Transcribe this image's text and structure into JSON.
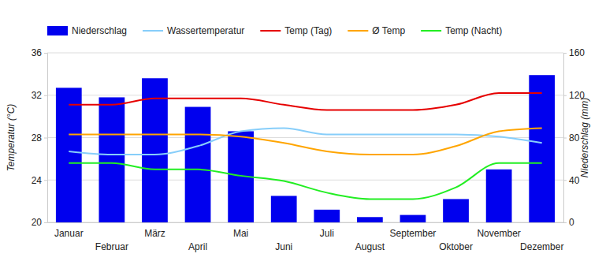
{
  "chart_data": {
    "type": "bar",
    "categories": [
      "Januar",
      "Februar",
      "März",
      "April",
      "Mai",
      "Juni",
      "Juli",
      "August",
      "September",
      "Oktober",
      "November",
      "Dezember"
    ],
    "series": [
      {
        "name": "Niederschlag",
        "type": "bar",
        "axis": "y2",
        "color": "#0000ee",
        "values": [
          127,
          118,
          136,
          109,
          86,
          25,
          12,
          5,
          7,
          22,
          50,
          139
        ]
      },
      {
        "name": "Wassertemperatur",
        "type": "line",
        "color": "#87cefa",
        "values": [
          26.7,
          26.4,
          26.4,
          27.2,
          28.6,
          28.9,
          28.3,
          28.3,
          28.3,
          28.3,
          28.1,
          27.5
        ]
      },
      {
        "name": "Temp (Tag)",
        "type": "line",
        "color": "#e60000",
        "values": [
          31.1,
          31.1,
          31.7,
          31.7,
          31.7,
          31.1,
          30.6,
          30.6,
          30.6,
          31.1,
          32.2,
          32.2
        ]
      },
      {
        "name": "Ø Temp",
        "type": "line",
        "color": "#ffa500",
        "values": [
          28.3,
          28.3,
          28.3,
          28.3,
          28.1,
          27.5,
          26.7,
          26.4,
          26.4,
          27.2,
          28.6,
          28.9
        ]
      },
      {
        "name": "Temp (Nacht)",
        "type": "line",
        "color": "#22ee22",
        "values": [
          25.6,
          25.6,
          25.0,
          25.0,
          24.4,
          23.9,
          22.8,
          22.2,
          22.2,
          23.3,
          25.6,
          25.6
        ]
      }
    ],
    "y_label": "Temperatur (°C)",
    "y2_label": "Niederschlag (mm)",
    "ylim": [
      20,
      36
    ],
    "yticks": [
      20,
      24,
      28,
      32,
      36
    ],
    "y2lim": [
      0,
      160
    ],
    "y2ticks": [
      0,
      40,
      80,
      120,
      160
    ],
    "grid": true,
    "legend": "top"
  }
}
